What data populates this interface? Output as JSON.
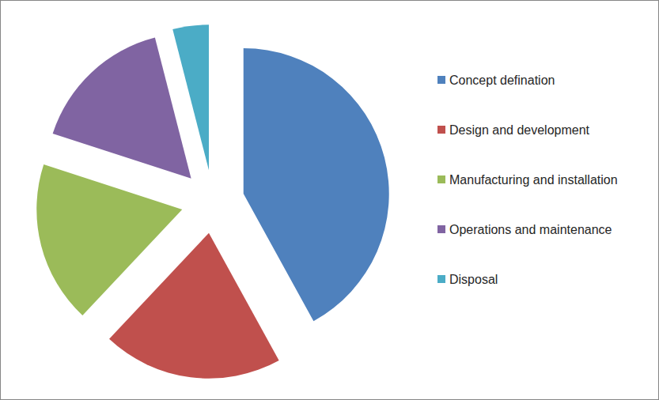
{
  "chart_data": {
    "type": "pie",
    "categories": [
      "Concept defination",
      "Design and development",
      "Manufacturing and installation",
      "Operations and maintenance",
      "Disposal"
    ],
    "values": [
      42,
      20,
      18,
      16,
      4
    ],
    "colors": [
      "#4f81bd",
      "#c0504d",
      "#9bbb59",
      "#8064a2",
      "#4bacc6"
    ],
    "legend": "right"
  }
}
